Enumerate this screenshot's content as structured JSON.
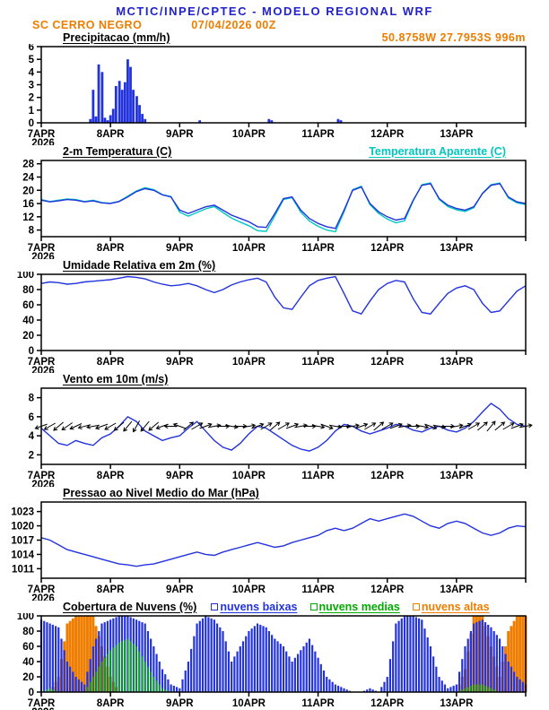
{
  "header": {
    "title": "MCTIC/INPE/CPTEC - MODELO REGIONAL WRF",
    "station": "SC CERRO NEGRO",
    "run": "07/04/2026 00Z",
    "coords": "50.8758W 27.7953S 996m"
  },
  "colors": {
    "title_blue": "#2222cc",
    "orange": "#ee7d00",
    "line_blue": "#2233dd",
    "cyan": "#00c8c0",
    "green": "#00aa00",
    "black": "#000000"
  },
  "panels": {
    "precip": {
      "title": "Precipitacao (mm/h)"
    },
    "temp": {
      "title": "2-m Temperatura (C)",
      "secondary": "Temperatura Aparente (C)"
    },
    "rh": {
      "title": "Umidade Relativa em 2m (%)"
    },
    "wind": {
      "title": "Vento em 10m (m/s)"
    },
    "pressure": {
      "title": "Pressao ao Nivel Medio do Mar (hPa)"
    },
    "clouds": {
      "title": "Cobertura de Nuvens (%)",
      "legend": [
        {
          "label": "nuvens baixas",
          "color_key": "line_blue"
        },
        {
          "label": "nuvens medias",
          "color_key": "green"
        },
        {
          "label": "nuvens altas",
          "color_key": "orange"
        }
      ]
    }
  },
  "chart_data": [
    {
      "type": "bar",
      "title": "Precipitacao (mm/h)",
      "x_labels": [
        "7APR",
        "8APR",
        "9APR",
        "10APR",
        "11APR",
        "12APR",
        "13APR"
      ],
      "x_year": "2026",
      "x_span_days": 7,
      "x_step_days": 0.125,
      "ylim": [
        0,
        6
      ],
      "yticks": [
        0,
        1,
        2,
        3,
        4,
        5,
        6
      ],
      "bars": [
        [
          0.71,
          0.3
        ],
        [
          0.75,
          2.6
        ],
        [
          0.79,
          0.5
        ],
        [
          0.83,
          4.6
        ],
        [
          0.88,
          4.0
        ],
        [
          0.92,
          0.4
        ],
        [
          0.96,
          0.2
        ],
        [
          1.0,
          0.6
        ],
        [
          1.04,
          1.1
        ],
        [
          1.08,
          2.9
        ],
        [
          1.13,
          3.3
        ],
        [
          1.17,
          2.6
        ],
        [
          1.21,
          3.2
        ],
        [
          1.25,
          5.0
        ],
        [
          1.29,
          4.4
        ],
        [
          1.33,
          2.6
        ],
        [
          1.38,
          2.1
        ],
        [
          1.42,
          1.4
        ],
        [
          1.46,
          0.7
        ],
        [
          1.5,
          0.3
        ],
        [
          2.29,
          0.2
        ],
        [
          3.29,
          0.3
        ],
        [
          3.33,
          0.2
        ],
        [
          4.29,
          0.3
        ],
        [
          4.33,
          0.2
        ]
      ]
    },
    {
      "type": "line",
      "title": "2-m Temperatura (C)",
      "x_labels": [
        "7APR",
        "8APR",
        "9APR",
        "10APR",
        "11APR",
        "12APR",
        "13APR"
      ],
      "x_year": "2026",
      "x_span_days": 7,
      "x_step_days": 0.125,
      "ylim": [
        6,
        29
      ],
      "yticks": [
        8,
        12,
        16,
        20,
        24,
        28
      ],
      "series": [
        {
          "name": "2-m Temperatura (C)",
          "color_key": "line_blue",
          "values": [
            17.0,
            16.5,
            16.8,
            17.2,
            17.0,
            16.5,
            16.8,
            16.2,
            16.0,
            16.6,
            18.0,
            19.6,
            20.5,
            20.0,
            18.6,
            18.0,
            14.0,
            13.0,
            14.0,
            15.0,
            15.5,
            14.0,
            12.5,
            11.5,
            10.5,
            9.0,
            8.8,
            13.0,
            17.5,
            18.0,
            14.0,
            11.5,
            10.0,
            9.0,
            8.5,
            14.0,
            20.0,
            21.0,
            16.0,
            13.5,
            12.0,
            11.0,
            11.5,
            17.0,
            21.5,
            22.0,
            17.5,
            15.5,
            14.5,
            14.0,
            15.0,
            19.0,
            21.5,
            22.0,
            18.0,
            16.5,
            16.0
          ]
        },
        {
          "name": "Temperatura Aparente (C)",
          "color_key": "cyan",
          "values": [
            17.2,
            16.6,
            17.0,
            17.4,
            17.2,
            16.6,
            17.0,
            16.3,
            16.1,
            16.7,
            18.2,
            19.8,
            20.8,
            20.2,
            18.7,
            18.1,
            13.4,
            12.2,
            13.3,
            14.4,
            15.1,
            13.3,
            11.6,
            10.4,
            9.3,
            7.8,
            7.6,
            12.3,
            17.2,
            17.8,
            13.4,
            10.7,
            9.1,
            8.0,
            7.5,
            13.5,
            20.2,
            21.2,
            15.7,
            13.0,
            11.3,
            10.2,
            10.8,
            16.8,
            21.7,
            22.2,
            17.2,
            15.1,
            14.1,
            13.6,
            14.7,
            19.1,
            21.7,
            22.2,
            17.7,
            16.2,
            15.7
          ]
        }
      ]
    },
    {
      "type": "line",
      "title": "Umidade Relativa em 2m (%)",
      "x_labels": [
        "7APR",
        "8APR",
        "9APR",
        "10APR",
        "11APR",
        "12APR",
        "13APR"
      ],
      "x_year": "2026",
      "x_span_days": 7,
      "x_step_days": 0.125,
      "ylim": [
        0,
        100
      ],
      "yticks": [
        0,
        20,
        40,
        60,
        80,
        100
      ],
      "series": [
        {
          "name": "Umidade Relativa",
          "color_key": "line_blue",
          "values": [
            88,
            90,
            89,
            87,
            88,
            90,
            91,
            92,
            93,
            95,
            97,
            96,
            94,
            90,
            87,
            85,
            86,
            88,
            85,
            80,
            76,
            80,
            86,
            90,
            93,
            95,
            90,
            70,
            56,
            54,
            70,
            85,
            92,
            95,
            97,
            75,
            52,
            48,
            65,
            80,
            88,
            92,
            90,
            68,
            50,
            48,
            62,
            75,
            82,
            85,
            80,
            62,
            50,
            52,
            65,
            78,
            85
          ]
        }
      ]
    },
    {
      "type": "line+barbs",
      "title": "Vento em 10m (m/s)",
      "x_labels": [
        "7APR",
        "8APR",
        "9APR",
        "10APR",
        "11APR",
        "12APR",
        "13APR"
      ],
      "x_year": "2026",
      "x_span_days": 7,
      "x_step_days": 0.125,
      "ylim": [
        1,
        9
      ],
      "yticks": [
        2,
        4,
        6,
        8
      ],
      "arrow_y": 5,
      "dir_deg": [
        200,
        210,
        220,
        215,
        205,
        195,
        190,
        200,
        210,
        220,
        230,
        240,
        230,
        220,
        200,
        180,
        160,
        40,
        30,
        20,
        10,
        0,
        350,
        0,
        10,
        20,
        30,
        40,
        30,
        20,
        10,
        0,
        350,
        340,
        350,
        0,
        10,
        20,
        30,
        40,
        30,
        20,
        10,
        0,
        350,
        340,
        350,
        0,
        10,
        20,
        30,
        40,
        50,
        40,
        30,
        20,
        10
      ],
      "series": [
        {
          "name": "Velocidade do vento",
          "color_key": "line_blue",
          "values": [
            4.8,
            4.0,
            3.2,
            3.0,
            3.5,
            3.2,
            3.0,
            3.8,
            4.2,
            5.0,
            6.0,
            5.5,
            4.5,
            4.0,
            3.5,
            3.8,
            4.0,
            4.8,
            5.5,
            4.5,
            3.5,
            2.8,
            2.5,
            3.2,
            4.2,
            5.0,
            4.8,
            4.2,
            3.6,
            3.0,
            2.6,
            2.4,
            2.8,
            3.5,
            4.5,
            5.2,
            5.0,
            4.5,
            4.2,
            4.5,
            4.8,
            5.2,
            5.0,
            4.6,
            4.4,
            4.8,
            5.0,
            4.6,
            4.4,
            4.8,
            5.5,
            6.5,
            7.4,
            6.8,
            5.8,
            5.2,
            5.0
          ]
        }
      ]
    },
    {
      "type": "line",
      "title": "Pressao ao Nivel Medio do Mar (hPa)",
      "x_labels": [
        "7APR",
        "8APR",
        "9APR",
        "10APR",
        "11APR",
        "12APR",
        "13APR"
      ],
      "x_year": "2026",
      "x_span_days": 7,
      "x_step_days": 0.125,
      "ylim": [
        1009,
        1025
      ],
      "yticks": [
        1011,
        1014,
        1017,
        1020,
        1023
      ],
      "series": [
        {
          "name": "Pressao ao nivel do mar",
          "color_key": "line_blue",
          "values": [
            1017.5,
            1017.0,
            1016.0,
            1015.0,
            1014.5,
            1014.0,
            1013.5,
            1013.0,
            1012.5,
            1012.0,
            1011.8,
            1011.5,
            1011.8,
            1012.0,
            1012.5,
            1013.0,
            1013.5,
            1014.0,
            1014.5,
            1014.0,
            1013.8,
            1014.5,
            1015.0,
            1015.5,
            1016.0,
            1016.5,
            1016.0,
            1015.5,
            1015.8,
            1016.5,
            1017.0,
            1017.5,
            1018.0,
            1019.0,
            1019.5,
            1019.0,
            1019.5,
            1020.5,
            1021.5,
            1021.0,
            1021.5,
            1022.0,
            1022.5,
            1022.0,
            1021.0,
            1020.0,
            1019.5,
            1020.5,
            1021.0,
            1020.5,
            1019.5,
            1018.5,
            1018.0,
            1018.5,
            1019.5,
            1020.0,
            1019.8
          ]
        }
      ]
    },
    {
      "type": "bar-multi",
      "title": "Cobertura de Nuvens (%)",
      "x_labels": [
        "7APR",
        "8APR",
        "9APR",
        "10APR",
        "11APR",
        "12APR",
        "13APR"
      ],
      "x_year": "2026",
      "x_span_days": 7,
      "x_step_days": 0.125,
      "ylim": [
        0,
        100
      ],
      "yticks": [
        0,
        20,
        40,
        60,
        80,
        100
      ],
      "series": [
        {
          "name": "nuvens baixas",
          "color_key": "line_blue",
          "values": [
            95,
            90,
            85,
            40,
            20,
            10,
            60,
            90,
            95,
            100,
            100,
            95,
            90,
            60,
            30,
            10,
            5,
            40,
            90,
            100,
            95,
            80,
            40,
            60,
            80,
            90,
            85,
            70,
            60,
            40,
            55,
            70,
            45,
            20,
            10,
            5,
            0,
            0,
            5,
            0,
            20,
            90,
            100,
            100,
            95,
            60,
            20,
            5,
            10,
            60,
            90,
            95,
            85,
            70,
            40,
            20,
            10
          ]
        },
        {
          "name": "nuvens medias",
          "color_key": "green",
          "values": [
            0,
            5,
            0,
            0,
            0,
            0,
            20,
            40,
            55,
            65,
            70,
            60,
            40,
            20,
            5,
            0,
            0,
            0,
            0,
            0,
            0,
            0,
            0,
            0,
            0,
            0,
            0,
            0,
            0,
            0,
            0,
            0,
            0,
            0,
            0,
            0,
            0,
            0,
            0,
            0,
            0,
            0,
            0,
            0,
            0,
            0,
            0,
            0,
            0,
            5,
            10,
            10,
            5,
            0,
            0,
            0,
            0
          ]
        },
        {
          "name": "nuvens altas",
          "color_key": "orange",
          "values": [
            0,
            0,
            20,
            90,
            100,
            100,
            100,
            60,
            20,
            0,
            0,
            0,
            0,
            0,
            0,
            0,
            0,
            0,
            0,
            0,
            0,
            0,
            0,
            0,
            0,
            0,
            0,
            0,
            0,
            0,
            0,
            0,
            0,
            0,
            0,
            0,
            0,
            0,
            0,
            0,
            0,
            0,
            0,
            0,
            0,
            0,
            0,
            0,
            0,
            30,
            100,
            100,
            60,
            20,
            80,
            100,
            100
          ]
        }
      ]
    }
  ]
}
